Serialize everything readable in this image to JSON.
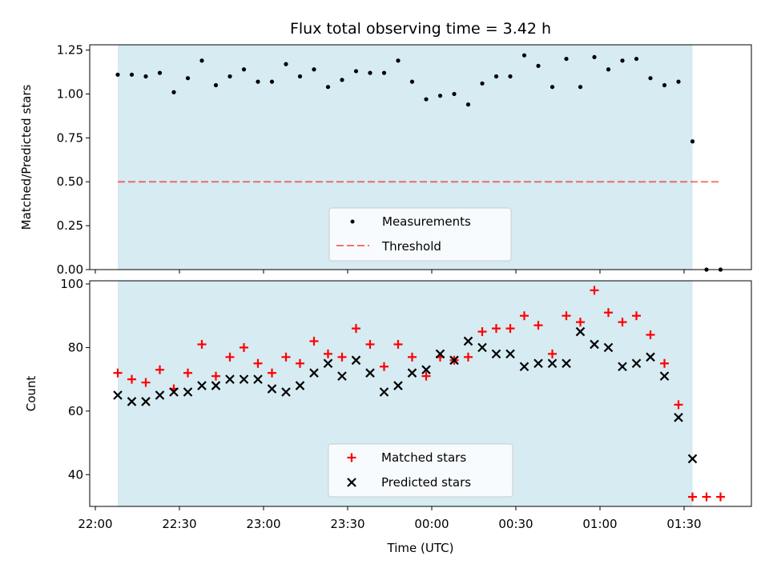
{
  "chart_data": [
    {
      "type": "scatter",
      "title": "Flux total observing time = 3.42 h",
      "ylabel": "Matched/Predicted stars",
      "xlabel": "",
      "ylim": [
        0,
        1.28
      ],
      "yticks": [
        "0.00",
        "0.25",
        "0.50",
        "0.75",
        "1.00",
        "1.25"
      ],
      "ytick_values": [
        0,
        0.25,
        0.5,
        0.75,
        1.0,
        1.25
      ],
      "observing_window_min": [
        8,
        213
      ],
      "threshold": 0.5,
      "legend_position": "lower-center",
      "colors": {
        "shade": "#add8e6",
        "points": "#000000",
        "threshold": "#ff0000"
      },
      "series": [
        {
          "name": "Measurements",
          "x_min": [
            8,
            13,
            18,
            23,
            28,
            33,
            38,
            43,
            48,
            53,
            58,
            63,
            68,
            73,
            78,
            83,
            88,
            93,
            98,
            103,
            108,
            113,
            118,
            123,
            128,
            133,
            138,
            143,
            148,
            153,
            158,
            163,
            168,
            173,
            178,
            183,
            188,
            193,
            198,
            203,
            208,
            213,
            218,
            223
          ],
          "values": [
            1.11,
            1.11,
            1.1,
            1.12,
            1.01,
            1.09,
            1.19,
            1.05,
            1.1,
            1.14,
            1.07,
            1.07,
            1.17,
            1.1,
            1.14,
            1.04,
            1.08,
            1.13,
            1.12,
            1.12,
            1.19,
            1.07,
            0.97,
            0.99,
            1.0,
            0.94,
            1.06,
            1.1,
            1.1,
            1.22,
            1.16,
            1.04,
            1.2,
            1.04,
            1.21,
            1.14,
            1.19,
            1.2,
            1.09,
            1.05,
            1.07,
            0.73,
            0.0,
            0.0
          ]
        },
        {
          "name": "Threshold",
          "x_min": [
            8,
            223
          ],
          "values": [
            0.5,
            0.5
          ]
        }
      ]
    },
    {
      "type": "scatter",
      "title": "",
      "ylabel": "Count",
      "xlabel": "Time (UTC)",
      "ylim": [
        30,
        101
      ],
      "yticks": [
        "40",
        "60",
        "80",
        "100"
      ],
      "ytick_values": [
        40,
        60,
        80,
        100
      ],
      "xticks": [
        "22:00",
        "22:30",
        "23:00",
        "23:30",
        "00:00",
        "00:30",
        "01:00",
        "01:30"
      ],
      "xtick_min": [
        0,
        30,
        60,
        90,
        120,
        150,
        180,
        210
      ],
      "xlim_min": [
        -2,
        234
      ],
      "observing_window_min": [
        8,
        213
      ],
      "legend_position": "lower-center",
      "colors": {
        "shade": "#add8e6",
        "matched": "#ff0000",
        "predicted": "#000000"
      },
      "series": [
        {
          "name": "Matched stars",
          "x_min": [
            8,
            13,
            18,
            23,
            28,
            33,
            38,
            43,
            48,
            53,
            58,
            63,
            68,
            73,
            78,
            83,
            88,
            93,
            98,
            103,
            108,
            113,
            118,
            123,
            128,
            133,
            138,
            143,
            148,
            153,
            158,
            163,
            168,
            173,
            178,
            183,
            188,
            193,
            198,
            203,
            208,
            213,
            218,
            223
          ],
          "values": [
            72,
            70,
            69,
            73,
            67,
            72,
            81,
            71,
            77,
            80,
            75,
            72,
            77,
            75,
            82,
            78,
            77,
            86,
            81,
            74,
            81,
            77,
            71,
            77,
            76,
            77,
            85,
            86,
            86,
            90,
            87,
            78,
            90,
            88,
            98,
            91,
            88,
            90,
            84,
            75,
            62,
            33,
            33,
            33
          ]
        },
        {
          "name": "Predicted stars",
          "x_min": [
            8,
            13,
            18,
            23,
            28,
            33,
            38,
            43,
            48,
            53,
            58,
            63,
            68,
            73,
            78,
            83,
            88,
            93,
            98,
            103,
            108,
            113,
            118,
            123,
            128,
            133,
            138,
            143,
            148,
            153,
            158,
            163,
            168,
            173,
            178,
            183,
            188,
            193,
            198,
            203,
            208,
            213
          ],
          "values": [
            65,
            63,
            63,
            65,
            66,
            66,
            68,
            68,
            70,
            70,
            70,
            67,
            66,
            68,
            72,
            75,
            71,
            76,
            72,
            66,
            68,
            72,
            73,
            78,
            76,
            82,
            80,
            78,
            78,
            74,
            75,
            75,
            75,
            85,
            81,
            80,
            74,
            75,
            77,
            71,
            58,
            45
          ]
        }
      ]
    }
  ]
}
